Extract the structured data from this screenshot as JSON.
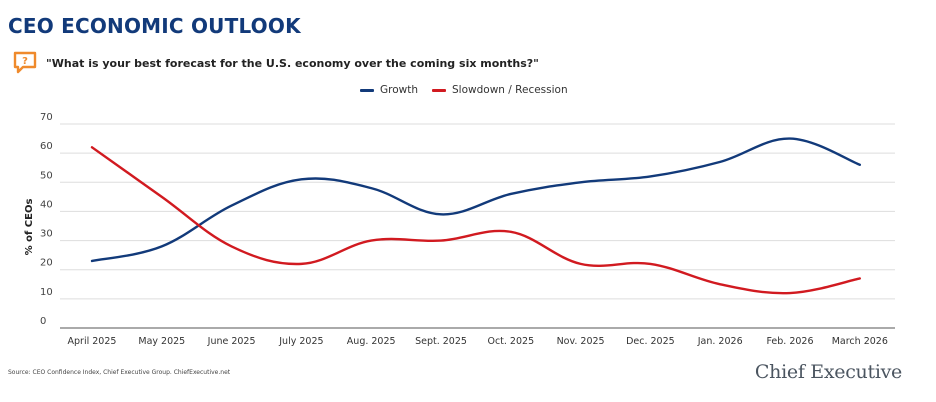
{
  "header": {
    "title": "CEO ECONOMIC OUTLOOK",
    "question": "\"What is your best forecast for the U.S. economy over the coming six months?\"",
    "icon": "question-speech-bubble-icon"
  },
  "colors": {
    "title": "#123a7a",
    "growth": "#123a7a",
    "slowdown": "#d11a20",
    "icon": "#ef8a2c",
    "grid": "#dddddd"
  },
  "footer": {
    "source": "Source: CEO Confidence Index, Chief Executive Group. ChiefExecutive.net",
    "brand": "Chief Executive"
  },
  "chart_data": {
    "type": "line",
    "title": "CEO ECONOMIC OUTLOOK",
    "subtitle": "\"What is your best forecast for the U.S. economy over the coming six months?\"",
    "xlabel": "",
    "ylabel": "% of CEOs",
    "ylim": [
      0,
      70
    ],
    "yticks": [
      0,
      10,
      20,
      30,
      40,
      50,
      60,
      70
    ],
    "grid": true,
    "legend_position": "top-center",
    "categories": [
      "April 2025",
      "May 2025",
      "June 2025",
      "July 2025",
      "Aug. 2025",
      "Sept. 2025",
      "Oct. 2025",
      "Nov. 2025",
      "Dec. 2025",
      "Jan. 2026",
      "Feb. 2026",
      "March 2026"
    ],
    "series": [
      {
        "name": "Growth",
        "color": "#123a7a",
        "values": [
          23,
          28,
          42,
          51,
          48,
          39,
          46,
          50,
          52,
          57,
          65,
          56
        ]
      },
      {
        "name": "Slowdown / Recession",
        "color": "#d11a20",
        "values": [
          62,
          45,
          28,
          22,
          30,
          30,
          33,
          22,
          22,
          15,
          12,
          17
        ]
      }
    ]
  }
}
